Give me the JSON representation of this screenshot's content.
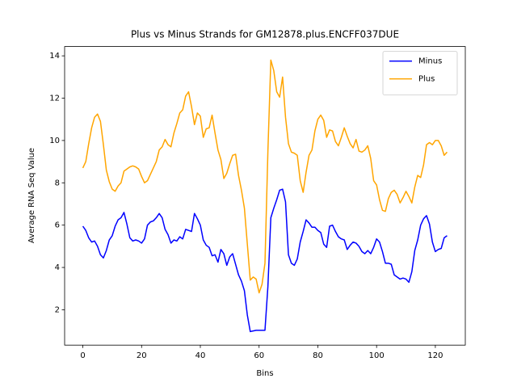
{
  "chart_data": {
    "type": "line",
    "title": "Plus vs Minus Strands for GM12878.plus.ENCFF037DUE",
    "xlabel": "Bins",
    "ylabel": "Average RNA Seq Value",
    "x": [
      0,
      1,
      2,
      3,
      4,
      5,
      6,
      7,
      8,
      9,
      10,
      11,
      12,
      13,
      14,
      15,
      16,
      17,
      18,
      19,
      20,
      21,
      22,
      23,
      24,
      25,
      26,
      27,
      28,
      29,
      30,
      31,
      32,
      33,
      34,
      35,
      36,
      37,
      38,
      39,
      40,
      41,
      42,
      43,
      44,
      45,
      46,
      47,
      48,
      49,
      50,
      51,
      52,
      53,
      54,
      55,
      56,
      57,
      58,
      59,
      60,
      61,
      62,
      63,
      64,
      65,
      66,
      67,
      68,
      69,
      70,
      71,
      72,
      73,
      74,
      75,
      76,
      77,
      78,
      79,
      80,
      81,
      82,
      83,
      84,
      85,
      86,
      87,
      88,
      89,
      90,
      91,
      92,
      93,
      94,
      95,
      96,
      97,
      98,
      99,
      100,
      101,
      102,
      103,
      104,
      105,
      106,
      107,
      108,
      109,
      110,
      111,
      112,
      113,
      114,
      115,
      116,
      117,
      118,
      119,
      120,
      121,
      122,
      123,
      124
    ],
    "series": [
      {
        "name": "Minus",
        "color": "#0000ff",
        "values": [
          5.95,
          5.75,
          5.4,
          5.2,
          5.25,
          5.0,
          4.6,
          4.45,
          4.8,
          5.3,
          5.5,
          5.95,
          6.25,
          6.35,
          6.6,
          6.05,
          5.4,
          5.25,
          5.3,
          5.25,
          5.15,
          5.35,
          6.0,
          6.15,
          6.2,
          6.35,
          6.55,
          6.35,
          5.8,
          5.55,
          5.15,
          5.3,
          5.25,
          5.45,
          5.35,
          5.8,
          5.75,
          5.7,
          6.55,
          6.3,
          6.0,
          5.3,
          5.05,
          4.95,
          4.55,
          4.6,
          4.25,
          4.85,
          4.65,
          4.1,
          4.5,
          4.65,
          4.15,
          3.65,
          3.35,
          2.9,
          1.75,
          0.97,
          1.0,
          1.03,
          1.03,
          1.03,
          1.03,
          3.1,
          6.35,
          6.8,
          7.2,
          7.65,
          7.7,
          7.1,
          4.6,
          4.2,
          4.1,
          4.4,
          5.2,
          5.7,
          6.25,
          6.1,
          5.9,
          5.9,
          5.75,
          5.65,
          5.1,
          4.95,
          5.95,
          6.0,
          5.7,
          5.45,
          5.35,
          5.3,
          4.85,
          5.05,
          5.2,
          5.15,
          5.0,
          4.75,
          4.65,
          4.8,
          4.65,
          4.95,
          5.35,
          5.2,
          4.75,
          4.2,
          4.2,
          4.15,
          3.65,
          3.55,
          3.45,
          3.5,
          3.45,
          3.3,
          3.8,
          4.8,
          5.3,
          6.0,
          6.3,
          6.45,
          6.05,
          5.2,
          4.75,
          4.85,
          4.9,
          5.4,
          5.5
        ]
      },
      {
        "name": "Plus",
        "color": "#ffa500",
        "values": [
          8.7,
          9.0,
          9.85,
          10.6,
          11.1,
          11.25,
          10.9,
          9.8,
          8.6,
          8.05,
          7.7,
          7.6,
          7.85,
          8.0,
          8.55,
          8.65,
          8.75,
          8.8,
          8.75,
          8.65,
          8.3,
          8.0,
          8.1,
          8.4,
          8.7,
          9.0,
          9.55,
          9.7,
          10.05,
          9.8,
          9.7,
          10.35,
          10.8,
          11.3,
          11.45,
          12.1,
          12.3,
          11.6,
          10.75,
          11.3,
          11.15,
          10.15,
          10.55,
          10.6,
          11.2,
          10.35,
          9.55,
          9.1,
          8.2,
          8.45,
          8.9,
          9.3,
          9.35,
          8.35,
          7.65,
          6.8,
          5.1,
          3.4,
          3.55,
          3.45,
          2.8,
          3.2,
          4.2,
          9.5,
          13.8,
          13.3,
          12.3,
          12.05,
          13.0,
          11.1,
          9.85,
          9.45,
          9.4,
          9.3,
          8.1,
          7.55,
          8.5,
          9.3,
          9.55,
          10.45,
          11.0,
          11.2,
          10.95,
          10.15,
          10.5,
          10.45,
          9.95,
          9.75,
          10.15,
          10.6,
          10.2,
          9.85,
          9.65,
          10.05,
          9.5,
          9.45,
          9.55,
          9.75,
          9.15,
          8.1,
          7.9,
          7.2,
          6.7,
          6.65,
          7.25,
          7.55,
          7.65,
          7.45,
          7.05,
          7.3,
          7.6,
          7.35,
          7.05,
          7.8,
          8.35,
          8.25,
          8.85,
          9.8,
          9.9,
          9.8,
          10.0,
          10.0,
          9.75,
          9.3,
          9.45
        ]
      }
    ],
    "xlim": [
      -6.2,
      130.2
    ],
    "ylim": [
      0.33,
      14.44
    ],
    "xticks": [
      0,
      20,
      40,
      60,
      80,
      100,
      120
    ],
    "yticks": [
      2,
      4,
      6,
      8,
      10,
      12,
      14
    ],
    "legend": "upper right"
  }
}
